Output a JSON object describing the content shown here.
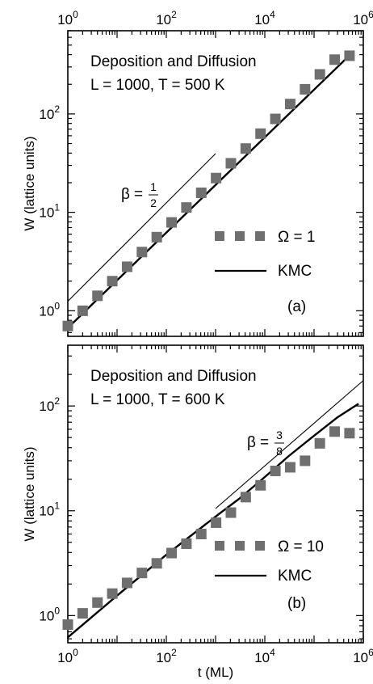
{
  "chart_data": [
    {
      "type": "scatter",
      "panel_label": "(a)",
      "annotation_lines": [
        "Deposition and Diffusion",
        "L = 1000, T = 500 K"
      ],
      "xscale": "log",
      "yscale": "log",
      "xlim": [
        1,
        1000000
      ],
      "ylim": [
        0.55,
        700
      ],
      "xticks": [
        {
          "m": "10",
          "e": "0"
        },
        {
          "m": "10",
          "e": "2"
        },
        {
          "m": "10",
          "e": "4"
        },
        {
          "m": "10",
          "e": "6"
        }
      ],
      "xtick_position": "top",
      "yticks": [
        {
          "m": "10",
          "e": "0"
        },
        {
          "m": "10",
          "e": "1"
        },
        {
          "m": "10",
          "e": "2"
        }
      ],
      "ylabel": "W (lattice units)",
      "xlabel": "",
      "grid": false,
      "legend_position": "middle-right",
      "series": [
        {
          "name": "Ω = 1",
          "kind": "markers",
          "color": "#6f6f6f",
          "x": [
            1,
            2,
            4,
            8,
            16,
            32,
            64,
            128,
            256,
            512,
            1024,
            2048,
            4096,
            8192,
            16384,
            32768,
            65536,
            131072,
            262144,
            524288
          ],
          "y": [
            0.7,
            1.0,
            1.42,
            2.0,
            2.8,
            3.95,
            5.6,
            7.9,
            11.2,
            15.8,
            22.3,
            31.5,
            44.5,
            63,
            89,
            126,
            178,
            252,
            356,
            390
          ]
        },
        {
          "name": "KMC",
          "kind": "line",
          "color": "#000000",
          "x": [
            1,
            600000
          ],
          "y": [
            0.67,
            420
          ]
        }
      ],
      "reference_line": {
        "label": "β",
        "numerator": "1",
        "denominator": "2",
        "x": [
          1,
          1000
        ],
        "y": [
          1.25,
          39.5
        ]
      }
    },
    {
      "type": "scatter",
      "panel_label": "(b)",
      "annotation_lines": [
        "Deposition and Diffusion",
        "L = 1000, T = 600 K"
      ],
      "xscale": "log",
      "yscale": "log",
      "xlim": [
        1,
        1000000
      ],
      "ylim": [
        0.55,
        380
      ],
      "xticks": [
        {
          "m": "10",
          "e": "0"
        },
        {
          "m": "10",
          "e": "2"
        },
        {
          "m": "10",
          "e": "4"
        },
        {
          "m": "10",
          "e": "6"
        }
      ],
      "xtick_position": "bottom",
      "yticks": [
        {
          "m": "10",
          "e": "0"
        },
        {
          "m": "10",
          "e": "1"
        },
        {
          "m": "10",
          "e": "2"
        }
      ],
      "ylabel": "W (lattice units)",
      "xlabel": "t (ML)",
      "grid": false,
      "legend_position": "middle-right",
      "series": [
        {
          "name": "Ω = 10",
          "kind": "markers",
          "color": "#6f6f6f",
          "x": [
            1,
            2,
            4,
            8,
            16,
            32,
            64,
            128,
            256,
            512,
            1024,
            2048,
            4096,
            8192,
            16384,
            32768,
            65536,
            131072,
            262144,
            524288
          ],
          "y": [
            0.82,
            1.05,
            1.33,
            1.62,
            2.05,
            2.55,
            3.15,
            3.95,
            4.85,
            6.0,
            7.7,
            9.6,
            13.5,
            17.5,
            24,
            26,
            30,
            44,
            57,
            55
          ]
        },
        {
          "name": "KMC",
          "kind": "line",
          "color": "#000000",
          "x": [
            1,
            10,
            100,
            1000,
            3000,
            10000,
            30000,
            100000,
            300000,
            800000
          ],
          "y": [
            0.62,
            1.55,
            3.8,
            8.8,
            13,
            21,
            33,
            52,
            78,
            105
          ]
        }
      ],
      "reference_line": {
        "label": "β",
        "numerator": "3",
        "denominator": "8",
        "x": [
          1000,
          1000000
        ],
        "y": [
          10.5,
          175
        ]
      }
    }
  ]
}
